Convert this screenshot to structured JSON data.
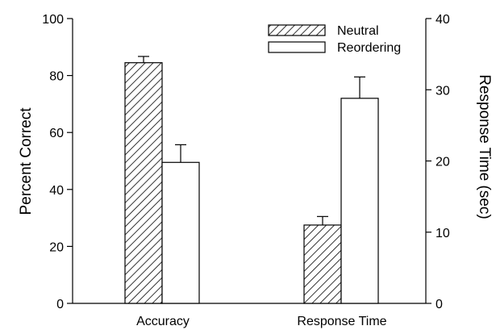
{
  "chart_data": {
    "type": "bar",
    "categories": [
      "Accuracy",
      "Response Time"
    ],
    "series": [
      {
        "name": "Neutral",
        "pattern": "hatched",
        "axis": [
          "left",
          "right"
        ],
        "values": [
          84.5,
          11.0
        ],
        "errors": [
          2.2,
          1.2
        ]
      },
      {
        "name": "Reordering",
        "pattern": "white",
        "axis": [
          "left",
          "right"
        ],
        "values": [
          49.5,
          28.8
        ],
        "errors": [
          6.2,
          3.0
        ]
      }
    ],
    "left_axis": {
      "label": "Percent Correct",
      "range": [
        0,
        100
      ],
      "ticks": [
        "0",
        "20",
        "40",
        "60",
        "80",
        "100"
      ]
    },
    "right_axis": {
      "label": "Response Time (sec)",
      "range": [
        0,
        40
      ],
      "ticks": [
        "0",
        "10",
        "20",
        "30",
        "40"
      ]
    },
    "legend": {
      "placement": "top-right",
      "entries": [
        "Neutral",
        "Reordering"
      ]
    },
    "grid": false,
    "colors": {
      "bar_outline": "#000000",
      "bar_fill": "#ffffff",
      "hatch": "#000000"
    }
  }
}
